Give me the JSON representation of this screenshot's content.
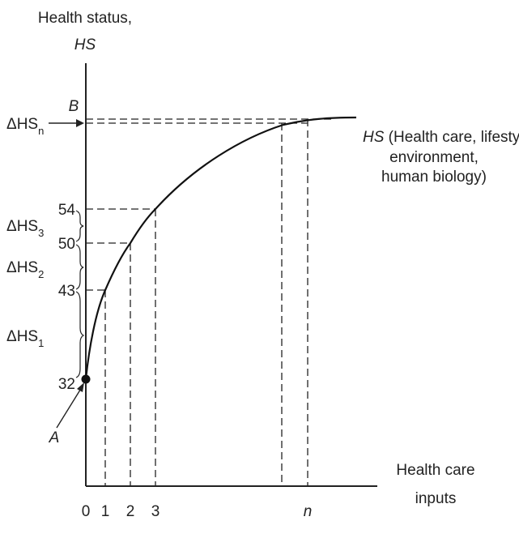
{
  "chart_data": {
    "type": "line",
    "title": "",
    "ylabel": [
      "Health status,",
      "HS"
    ],
    "xlabel": [
      "Health care",
      "inputs"
    ],
    "curve_label": {
      "main": "HS",
      "lines": [
        " (Health care, lifestyle,",
        "environment,",
        "human biology)"
      ]
    },
    "x_ticks": [
      "0",
      "1",
      "2",
      "3",
      "n"
    ],
    "y_ticks": [
      "32",
      "43",
      "50",
      "54"
    ],
    "points": [
      {
        "x": 0,
        "y": 32
      },
      {
        "x": 1,
        "y": 43
      },
      {
        "x": 2,
        "y": 50
      },
      {
        "x": 3,
        "y": 54
      }
    ],
    "delta_labels": [
      {
        "main": "ΔHS",
        "sub": "1"
      },
      {
        "main": "ΔHS",
        "sub": "2"
      },
      {
        "main": "ΔHS",
        "sub": "3"
      },
      {
        "main": "ΔHS",
        "sub": "n"
      }
    ],
    "point_labels": {
      "a": "A",
      "b": "B"
    }
  }
}
